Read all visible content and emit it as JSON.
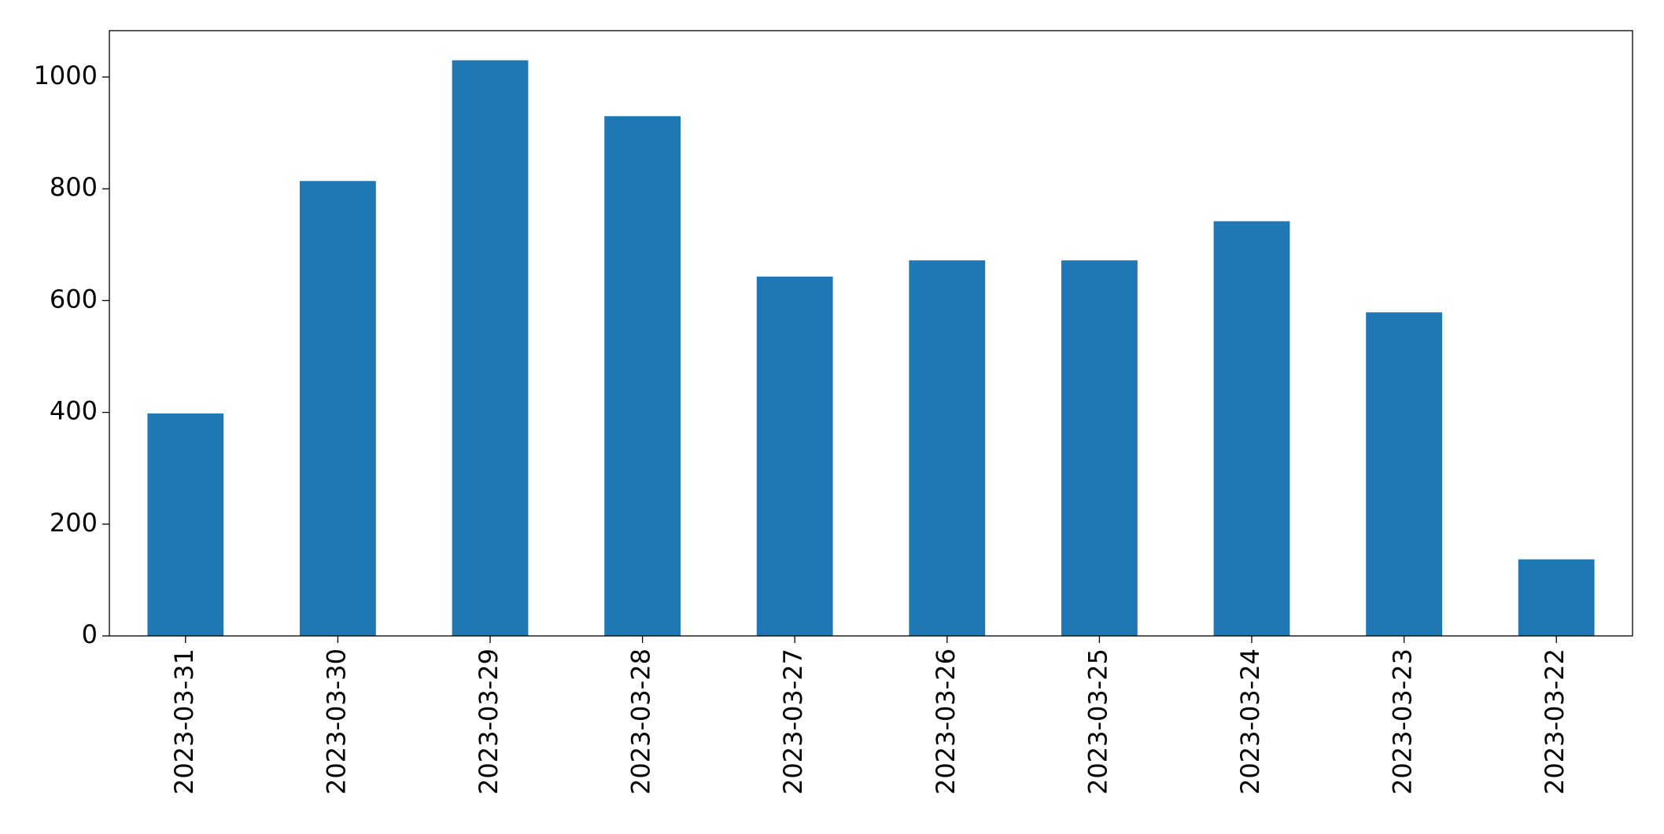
{
  "chart_data": {
    "type": "bar",
    "categories": [
      "2023-03-31",
      "2023-03-30",
      "2023-03-29",
      "2023-03-28",
      "2023-03-27",
      "2023-03-26",
      "2023-03-25",
      "2023-03-24",
      "2023-03-23",
      "2023-03-22"
    ],
    "values": [
      398,
      814,
      1030,
      930,
      643,
      672,
      672,
      742,
      579,
      137
    ],
    "color": "#1f77b4",
    "ylim": [
      0,
      1083
    ],
    "yticks": [
      0,
      200,
      400,
      600,
      800,
      1000
    ],
    "grid": false
  }
}
